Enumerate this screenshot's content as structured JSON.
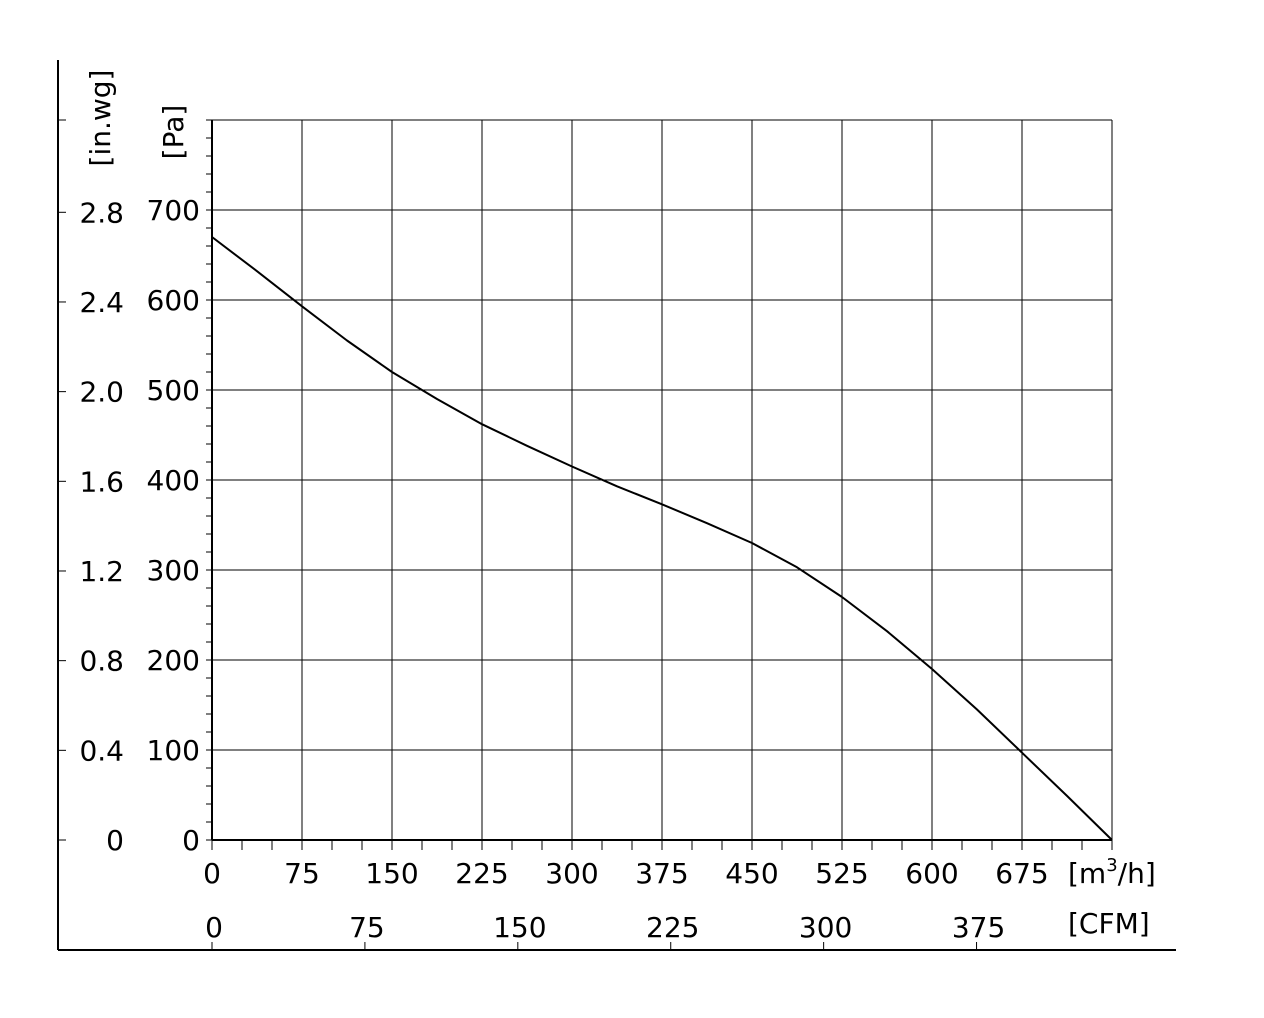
{
  "chart_data": {
    "type": "line",
    "x_unit": "[m³/h]",
    "x_unit_main": "[m",
    "x_unit_sup": "3",
    "x_unit_tail": "/h]",
    "x_ticks": [
      "0",
      "75",
      "150",
      "225",
      "300",
      "375",
      "450",
      "525",
      "600",
      "675"
    ],
    "xlim": [
      0,
      750
    ],
    "x2_unit": "[CFM]",
    "x2_ticks": [
      "0",
      "75",
      "150",
      "225",
      "300",
      "375"
    ],
    "y_unit": "[Pa]",
    "y_ticks": [
      "0",
      "100",
      "200",
      "300",
      "400",
      "500",
      "600",
      "700"
    ],
    "ylim": [
      0,
      800
    ],
    "y2_unit": "[in.wg]",
    "y2_ticks": [
      "0",
      "0.4",
      "0.8",
      "1.2",
      "1.6",
      "2.0",
      "2.4",
      "2.8"
    ],
    "grid": true,
    "series": [
      {
        "x": [
          0,
          37.5,
          75,
          112.5,
          150,
          187.5,
          225,
          262.5,
          300,
          337.5,
          375,
          412.5,
          450,
          487.5,
          525,
          562.5,
          600,
          637.5,
          675,
          712.5,
          750
        ],
        "y": [
          670,
          632,
          593,
          555,
          520,
          490,
          462,
          438,
          415,
          393,
          373,
          352,
          330,
          303,
          270,
          232,
          190,
          145,
          97,
          49,
          0
        ]
      }
    ]
  }
}
